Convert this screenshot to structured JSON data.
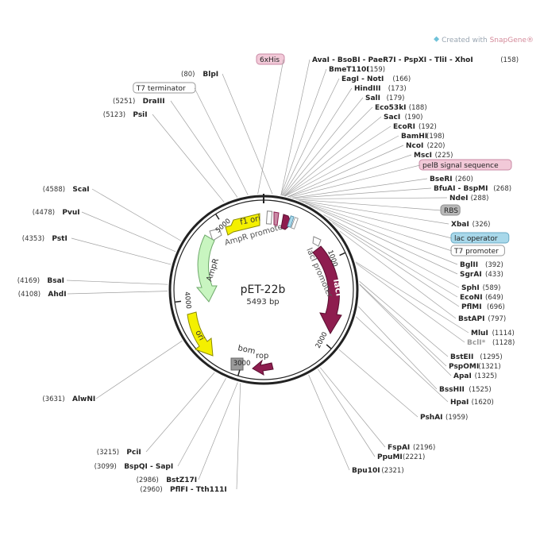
{
  "branding": {
    "prefix": "Created with",
    "name": "SnapGene",
    "mark": "®"
  },
  "plasmid": {
    "name": "pET-22b",
    "size_label": "5493 bp",
    "length": 5493
  },
  "ticks": [
    {
      "bp": 1000,
      "label": "1000"
    },
    {
      "bp": 2000,
      "label": "2000"
    },
    {
      "bp": 3000,
      "label": "3000"
    },
    {
      "bp": 4000,
      "label": "4000"
    },
    {
      "bp": 5000,
      "label": "5000"
    }
  ],
  "features": [
    {
      "name": "f1 ori",
      "color": "#f4f000",
      "label_color": "#333"
    },
    {
      "name": "AmpR promoter",
      "color": "#ffffff",
      "label_color": "#555"
    },
    {
      "name": "AmpR",
      "color": "#c8f5c0",
      "label_color": "#333"
    },
    {
      "name": "ori",
      "color": "#f4f000",
      "label_color": "#333"
    },
    {
      "name": "bom",
      "color": "#9a9a9a",
      "label_color": "#333"
    },
    {
      "name": "rop",
      "color": "#8e1d4f",
      "label_color": "#333"
    },
    {
      "name": "lacI",
      "color": "#8e1d4f",
      "label_color": "#ffffff"
    },
    {
      "name": "lacI promoter",
      "color": "#ffffff",
      "label_color": "#555"
    }
  ],
  "sites_right": [
    {
      "name": "AvaI - BsoBI - PaeR7I - PspXI - TliI - XhoI",
      "pos": "(158)",
      "boxed": false
    },
    {
      "name": "BmeT110I",
      "pos": "(159)",
      "boxed": false
    },
    {
      "name": "EagI - NotI",
      "pos": "(166)",
      "boxed": false
    },
    {
      "name": "HindIII",
      "pos": "(173)",
      "boxed": false
    },
    {
      "name": "SalI",
      "pos": "(179)",
      "boxed": false
    },
    {
      "name": "Eco53kI",
      "pos": "(188)",
      "boxed": false
    },
    {
      "name": "SacI",
      "pos": "(190)",
      "boxed": false
    },
    {
      "name": "EcoRI",
      "pos": "(192)",
      "boxed": false
    },
    {
      "name": "BamHI",
      "pos": "(198)",
      "boxed": false
    },
    {
      "name": "NcoI",
      "pos": "(220)",
      "boxed": false
    },
    {
      "name": "MscI",
      "pos": "(225)",
      "boxed": false
    },
    {
      "name": "pelB signal sequence",
      "pos": "",
      "boxed": true,
      "box_fill": "#f2c9d8",
      "box_stroke": "#c98aa5"
    },
    {
      "name": "BseRI",
      "pos": "(260)",
      "boxed": false
    },
    {
      "name": "BfuAI - BspMI",
      "pos": "(268)",
      "boxed": false
    },
    {
      "name": "NdeI",
      "pos": "(288)",
      "boxed": false
    },
    {
      "name": "RBS",
      "pos": "",
      "boxed": true,
      "box_fill": "#b8b8b8",
      "box_stroke": "#909090"
    },
    {
      "name": "XbaI",
      "pos": "(326)",
      "boxed": false
    },
    {
      "name": "lac operator",
      "pos": "",
      "boxed": true,
      "box_fill": "#a8d8ea",
      "box_stroke": "#6aaac4"
    },
    {
      "name": "T7 promoter",
      "pos": "",
      "boxed": true,
      "box_fill": "#ffffff",
      "box_stroke": "#999999"
    },
    {
      "name": "BglII",
      "pos": "(392)",
      "boxed": false
    },
    {
      "name": "SgrAI",
      "pos": "(433)",
      "boxed": false
    },
    {
      "name": "SphI",
      "pos": "(589)",
      "boxed": false
    },
    {
      "name": "EcoNI",
      "pos": "(649)",
      "boxed": false
    },
    {
      "name": "PflMI",
      "pos": "(696)",
      "boxed": false
    },
    {
      "name": "BstAPI",
      "pos": "(797)",
      "boxed": false
    },
    {
      "name": "MluI",
      "pos": "(1114)",
      "boxed": false
    },
    {
      "name": "BclI*",
      "pos": "(1128)",
      "boxed": false,
      "muted": true
    },
    {
      "name": "BstEII",
      "pos": "(1295)",
      "boxed": false
    },
    {
      "name": "PspOMI",
      "pos": "(1321)",
      "boxed": false
    },
    {
      "name": "ApaI",
      "pos": "(1325)",
      "boxed": false
    },
    {
      "name": "BssHII",
      "pos": "(1525)",
      "boxed": false
    },
    {
      "name": "HpaI",
      "pos": "(1620)",
      "boxed": false
    },
    {
      "name": "PshAI",
      "pos": "(1959)",
      "boxed": false
    },
    {
      "name": "FspAI",
      "pos": "(2196)",
      "boxed": false
    },
    {
      "name": "PpuMI",
      "pos": "(2221)",
      "boxed": false
    },
    {
      "name": "Bpu10I",
      "pos": "(2321)",
      "boxed": false
    }
  ],
  "sites_left": [
    {
      "name": "6xHis",
      "pos": "",
      "boxed": true,
      "box_fill": "#f2c9d8",
      "box_stroke": "#c98aa5"
    },
    {
      "name": "BlpI",
      "pos": "(80)",
      "boxed": false
    },
    {
      "name": "T7 terminator",
      "pos": "",
      "boxed": true,
      "box_fill": "#ffffff",
      "box_stroke": "#999999"
    },
    {
      "name": "DraIII",
      "pos": "(5251)",
      "boxed": false
    },
    {
      "name": "PsiI",
      "pos": "(5123)",
      "boxed": false
    },
    {
      "name": "ScaI",
      "pos": "(4588)",
      "boxed": false
    },
    {
      "name": "PvuI",
      "pos": "(4478)",
      "boxed": false
    },
    {
      "name": "PstI",
      "pos": "(4353)",
      "boxed": false
    },
    {
      "name": "BsaI",
      "pos": "(4169)",
      "boxed": false
    },
    {
      "name": "AhdI",
      "pos": "(4108)",
      "boxed": false
    },
    {
      "name": "AlwNI",
      "pos": "(3631)",
      "boxed": false
    },
    {
      "name": "PciI",
      "pos": "(3215)",
      "boxed": false
    },
    {
      "name": "BspQI - SapI",
      "pos": "(3099)",
      "boxed": false
    },
    {
      "name": "BstZ17I",
      "pos": "(2986)",
      "boxed": false
    },
    {
      "name": "PflFI - Tth111I",
      "pos": "(2960)",
      "boxed": false
    }
  ]
}
